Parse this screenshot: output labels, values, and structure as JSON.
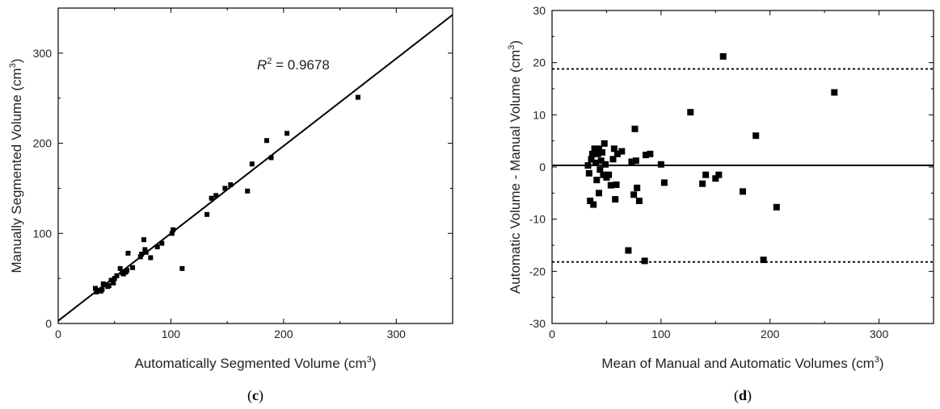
{
  "chart_data": [
    {
      "type": "scatter",
      "panel_label": "c",
      "xlabel": "Automatically Segmented Volume (cm",
      "xlabel_sup": "3",
      "xlabel_end": ")",
      "ylabel": "Manually Segmented Volume (cm",
      "ylabel_sup": "3",
      "ylabel_end": ")",
      "xlim": [
        0,
        350
      ],
      "ylim": [
        0,
        350
      ],
      "xticks": [
        0,
        100,
        200,
        300
      ],
      "yticks": [
        0,
        100,
        200,
        300
      ],
      "grid": false,
      "annotation": {
        "prefix": "R",
        "sup": "2",
        "text": " = 0.9678"
      },
      "fit_line": {
        "slope": 0.97,
        "intercept": 3
      },
      "series": [
        {
          "points": [
            [
              33,
              39
            ],
            [
              34,
              35
            ],
            [
              36,
              37
            ],
            [
              38,
              36
            ],
            [
              39,
              38
            ],
            [
              40,
              44
            ],
            [
              42,
              43
            ],
            [
              44,
              41
            ],
            [
              45,
              42
            ],
            [
              47,
              48
            ],
            [
              49,
              45
            ],
            [
              50,
              50
            ],
            [
              52,
              53
            ],
            [
              55,
              61
            ],
            [
              57,
              56
            ],
            [
              58,
              55
            ],
            [
              60,
              57
            ],
            [
              61,
              59
            ],
            [
              62,
              78
            ],
            [
              66,
              62
            ],
            [
              73,
              74
            ],
            [
              74,
              77
            ],
            [
              76,
              93
            ],
            [
              77,
              82
            ],
            [
              78,
              79
            ],
            [
              82,
              73
            ],
            [
              88,
              85
            ],
            [
              92,
              89
            ],
            [
              101,
              100
            ],
            [
              102,
              104
            ],
            [
              110,
              61
            ],
            [
              132,
              121
            ],
            [
              136,
              139
            ],
            [
              140,
              142
            ],
            [
              148,
              150
            ],
            [
              153,
              154
            ],
            [
              168,
              147
            ],
            [
              172,
              177
            ],
            [
              185,
              203
            ],
            [
              189,
              184
            ],
            [
              203,
              211
            ],
            [
              266,
              251
            ]
          ]
        }
      ]
    },
    {
      "type": "scatter",
      "panel_label": "d",
      "xlabel": "Mean of Manual and Automatic Volumes (cm",
      "xlabel_sup": "3",
      "xlabel_end": ")",
      "ylabel": "Automatic Volume - Manual Volume (cm",
      "ylabel_sup": "3",
      "ylabel_end": ")",
      "xlim": [
        0,
        350
      ],
      "ylim": [
        -30,
        30
      ],
      "xticks": [
        0,
        100,
        200,
        300
      ],
      "yticks": [
        -30,
        -20,
        -10,
        0,
        10,
        20,
        30
      ],
      "grid": false,
      "reference_lines": [
        {
          "y": 0.3,
          "style": "solid"
        },
        {
          "y": 18.8,
          "style": "dotted"
        },
        {
          "y": -18.2,
          "style": "dotted"
        }
      ],
      "series": [
        {
          "points": [
            [
              33,
              0.3
            ],
            [
              34,
              -1.2
            ],
            [
              35,
              -6.5
            ],
            [
              36,
              1.5
            ],
            [
              37,
              2.5
            ],
            [
              38,
              -7.2
            ],
            [
              39,
              3.5
            ],
            [
              40,
              0.8
            ],
            [
              41,
              -2.5
            ],
            [
              42,
              2.5
            ],
            [
              43,
              3.5
            ],
            [
              43,
              -5.0
            ],
            [
              44,
              -0.5
            ],
            [
              45,
              1.2
            ],
            [
              46,
              2.8
            ],
            [
              47,
              -1.5
            ],
            [
              48,
              4.5
            ],
            [
              49,
              0.5
            ],
            [
              50,
              -2.0
            ],
            [
              52,
              -1.5
            ],
            [
              54,
              -3.5
            ],
            [
              56,
              1.5
            ],
            [
              57,
              3.5
            ],
            [
              58,
              -6.2
            ],
            [
              59,
              -3.4
            ],
            [
              60,
              2.5
            ],
            [
              64,
              3.0
            ],
            [
              70,
              -16.0
            ],
            [
              73,
              1.0
            ],
            [
              75,
              -5.3
            ],
            [
              76,
              7.3
            ],
            [
              77,
              1.2
            ],
            [
              78,
              -4.0
            ],
            [
              80,
              -6.5
            ],
            [
              85,
              -18.0
            ],
            [
              86,
              2.3
            ],
            [
              90,
              2.5
            ],
            [
              100,
              0.5
            ],
            [
              103,
              -3.0
            ],
            [
              127,
              10.5
            ],
            [
              138,
              -3.2
            ],
            [
              141,
              -1.5
            ],
            [
              150,
              -2.2
            ],
            [
              153,
              -1.5
            ],
            [
              157,
              21.2
            ],
            [
              175,
              -4.7
            ],
            [
              187,
              6.0
            ],
            [
              194,
              -17.8
            ],
            [
              206,
              -7.7
            ],
            [
              259,
              14.3
            ]
          ]
        }
      ]
    }
  ]
}
